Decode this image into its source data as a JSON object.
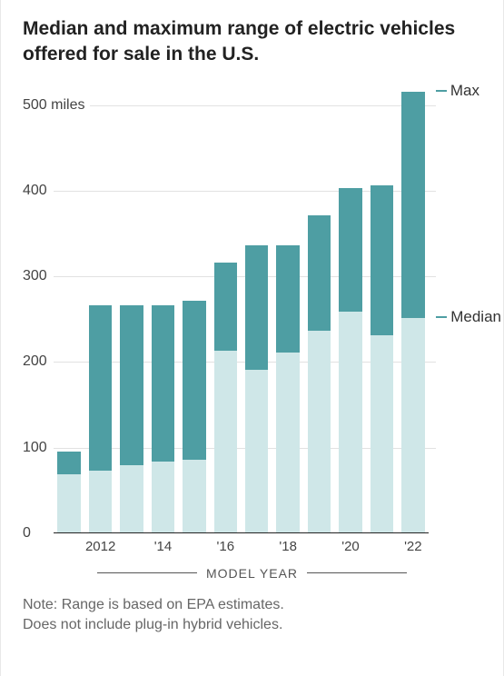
{
  "title": "Median and maximum range of electric vehicles offered for sale in the U.S.",
  "chart": {
    "type": "bar",
    "y_max": 515,
    "y_ticks": [
      {
        "value": 500,
        "label": "500 miles"
      },
      {
        "value": 400,
        "label": "400"
      },
      {
        "value": 300,
        "label": "300"
      },
      {
        "value": 200,
        "label": "200"
      },
      {
        "value": 100,
        "label": "100"
      },
      {
        "value": 0,
        "label": "0"
      }
    ],
    "grid_color": "#e2e2e2",
    "baseline_color": "#222222",
    "background_color": "#ffffff",
    "max_color": "#4e9ea3",
    "median_color": "#cfe7e8",
    "callout_tick_max_color": "#4e9ea3",
    "callout_tick_median_color": "#4e9ea3",
    "tick_label_fontsize": 16,
    "x_label_fontsize": 15,
    "title_fontsize": 21,
    "bars": [
      {
        "year": "2011",
        "label": "",
        "median": 68,
        "max": 94
      },
      {
        "year": "2012",
        "label": "2012",
        "median": 72,
        "max": 265
      },
      {
        "year": "2013",
        "label": "",
        "median": 78,
        "max": 265
      },
      {
        "year": "2014",
        "label": "'14",
        "median": 82,
        "max": 265
      },
      {
        "year": "2015",
        "label": "",
        "median": 85,
        "max": 270
      },
      {
        "year": "2016",
        "label": "'16",
        "median": 212,
        "max": 315
      },
      {
        "year": "2017",
        "label": "",
        "median": 190,
        "max": 335
      },
      {
        "year": "2018",
        "label": "'18",
        "median": 210,
        "max": 335
      },
      {
        "year": "2019",
        "label": "",
        "median": 235,
        "max": 370
      },
      {
        "year": "2020",
        "label": "'20",
        "median": 258,
        "max": 402
      },
      {
        "year": "2021",
        "label": "",
        "median": 230,
        "max": 405
      },
      {
        "year": "2022",
        "label": "'22",
        "median": 250,
        "max": 516
      }
    ],
    "x_axis_title": "MODEL YEAR",
    "callouts": {
      "max": "Max",
      "median": "Median"
    }
  },
  "note_line1": "Note: Range is based on EPA estimates.",
  "note_line2": "Does not include plug-in hybrid vehicles."
}
